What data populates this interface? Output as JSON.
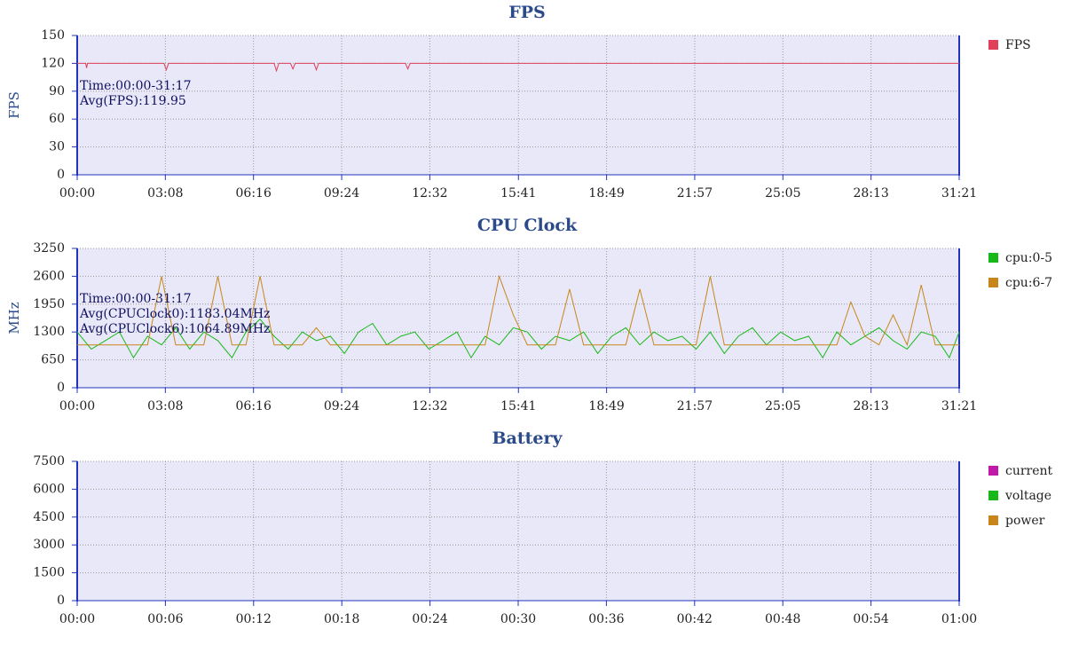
{
  "chart_data": [
    {
      "type": "line",
      "title": "FPS",
      "y_label": "FPS",
      "annotations": [
        "Time:00:00-31:17",
        "Avg(FPS):119.95"
      ],
      "x": [
        0,
        18,
        20,
        22,
        185,
        190,
        195,
        420,
        425,
        430,
        455,
        460,
        465,
        505,
        510,
        515,
        700,
        705,
        710,
        1881
      ],
      "series": [
        {
          "name": "FPS",
          "color": "#e0405a",
          "values": [
            120,
            120,
            115,
            120,
            120,
            113,
            120,
            120,
            112,
            120,
            120,
            114,
            120,
            120,
            113,
            120,
            120,
            114,
            120,
            120
          ]
        }
      ],
      "xlim": [
        0,
        1881
      ],
      "xticks": [
        {
          "value": 0,
          "label": "00:00"
        },
        {
          "value": 188,
          "label": "03:08"
        },
        {
          "value": 376,
          "label": "06:16"
        },
        {
          "value": 564,
          "label": "09:24"
        },
        {
          "value": 752,
          "label": "12:32"
        },
        {
          "value": 941,
          "label": "15:41"
        },
        {
          "value": 1129,
          "label": "18:49"
        },
        {
          "value": 1317,
          "label": "21:57"
        },
        {
          "value": 1505,
          "label": "25:05"
        },
        {
          "value": 1693,
          "label": "28:13"
        },
        {
          "value": 1881,
          "label": "31:21"
        }
      ],
      "ylim": [
        0,
        150
      ],
      "yticks": [
        0,
        30,
        60,
        90,
        120,
        150
      ],
      "grid": true
    },
    {
      "type": "line",
      "title": "CPU Clock",
      "y_label": "MHz",
      "annotations": [
        "Time:00:00-31:17",
        "Avg(CPUClock0):1183.04MHz",
        "Avg(CPUClock6):1064.89MHz"
      ],
      "x": [
        0,
        30,
        60,
        90,
        120,
        150,
        180,
        210,
        240,
        270,
        300,
        330,
        360,
        390,
        420,
        450,
        480,
        510,
        540,
        570,
        600,
        630,
        660,
        690,
        720,
        750,
        780,
        810,
        840,
        870,
        900,
        930,
        960,
        990,
        1020,
        1050,
        1080,
        1110,
        1140,
        1170,
        1200,
        1230,
        1260,
        1290,
        1320,
        1350,
        1380,
        1410,
        1440,
        1470,
        1500,
        1530,
        1560,
        1590,
        1620,
        1650,
        1680,
        1710,
        1740,
        1770,
        1800,
        1830,
        1860,
        1881
      ],
      "series": [
        {
          "name": "cpu:0-5",
          "color": "#18b818",
          "values": [
            1300,
            900,
            1100,
            1300,
            700,
            1200,
            1000,
            1400,
            900,
            1300,
            1100,
            700,
            1300,
            1600,
            1200,
            900,
            1300,
            1100,
            1200,
            800,
            1300,
            1500,
            1000,
            1200,
            1300,
            900,
            1100,
            1300,
            700,
            1200,
            1000,
            1400,
            1300,
            900,
            1200,
            1100,
            1300,
            800,
            1200,
            1400,
            1000,
            1300,
            1100,
            1200,
            900,
            1300,
            800,
            1200,
            1400,
            1000,
            1300,
            1100,
            1200,
            700,
            1300,
            1000,
            1200,
            1400,
            1100,
            900,
            1300,
            1200,
            700,
            1300
          ]
        },
        {
          "name": "cpu:6-7",
          "color": "#c8861a",
          "values": [
            1000,
            1000,
            1000,
            1000,
            1000,
            1000,
            2600,
            1000,
            1000,
            1000,
            2600,
            1000,
            1000,
            2600,
            1000,
            1000,
            1000,
            1400,
            1000,
            1000,
            1000,
            1000,
            1000,
            1000,
            1000,
            1000,
            1000,
            1000,
            1000,
            1000,
            2600,
            1700,
            1000,
            1000,
            1000,
            2300,
            1000,
            1000,
            1000,
            1000,
            2300,
            1000,
            1000,
            1000,
            1000,
            2600,
            1000,
            1000,
            1000,
            1000,
            1000,
            1000,
            1000,
            1000,
            1000,
            2000,
            1200,
            1000,
            1700,
            1000,
            2400,
            1000,
            1000,
            1000
          ]
        }
      ],
      "xlim": [
        0,
        1881
      ],
      "xticks": [
        {
          "value": 0,
          "label": "00:00"
        },
        {
          "value": 188,
          "label": "03:08"
        },
        {
          "value": 376,
          "label": "06:16"
        },
        {
          "value": 564,
          "label": "09:24"
        },
        {
          "value": 752,
          "label": "12:32"
        },
        {
          "value": 941,
          "label": "15:41"
        },
        {
          "value": 1129,
          "label": "18:49"
        },
        {
          "value": 1317,
          "label": "21:57"
        },
        {
          "value": 1505,
          "label": "25:05"
        },
        {
          "value": 1693,
          "label": "28:13"
        },
        {
          "value": 1881,
          "label": "31:21"
        }
      ],
      "ylim": [
        0,
        3250
      ],
      "yticks": [
        0,
        650,
        1300,
        1950,
        2600,
        3250
      ],
      "grid": true
    },
    {
      "type": "line",
      "title": "Battery",
      "x": [],
      "series": [
        {
          "name": "current",
          "color": "#c018a8",
          "values": []
        },
        {
          "name": "voltage",
          "color": "#18b818",
          "values": []
        },
        {
          "name": "power",
          "color": "#c8861a",
          "values": []
        }
      ],
      "xlim": [
        0,
        60
      ],
      "xticks": [
        {
          "value": 0,
          "label": "00:00"
        },
        {
          "value": 6,
          "label": "00:06"
        },
        {
          "value": 12,
          "label": "00:12"
        },
        {
          "value": 18,
          "label": "00:18"
        },
        {
          "value": 24,
          "label": "00:24"
        },
        {
          "value": 30,
          "label": "00:30"
        },
        {
          "value": 36,
          "label": "00:36"
        },
        {
          "value": 42,
          "label": "00:42"
        },
        {
          "value": 48,
          "label": "00:48"
        },
        {
          "value": 54,
          "label": "00:54"
        },
        {
          "value": 60,
          "label": "01:00"
        }
      ],
      "ylim": [
        0,
        7500
      ],
      "yticks": [
        0,
        1500,
        3000,
        4500,
        6000,
        7500
      ],
      "grid": true
    }
  ]
}
